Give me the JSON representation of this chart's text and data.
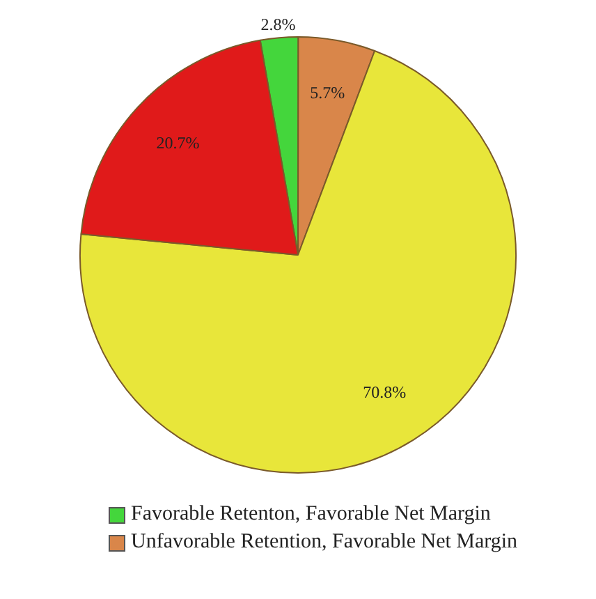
{
  "chart_data": {
    "type": "pie",
    "categories": [
      "Favorable Retenton, Favorable Net Margin",
      "Unfavorable Retention, Favorable Net Margin",
      null,
      null
    ],
    "values": [
      2.8,
      5.7,
      70.8,
      20.7
    ],
    "colors": [
      "#44d63c",
      "#d9864a",
      "#e8e63a",
      "#e01a1a"
    ],
    "value_labels": [
      "2.8%",
      "5.7%",
      "70.8%",
      "20.7%"
    ],
    "legend": "bottom"
  }
}
